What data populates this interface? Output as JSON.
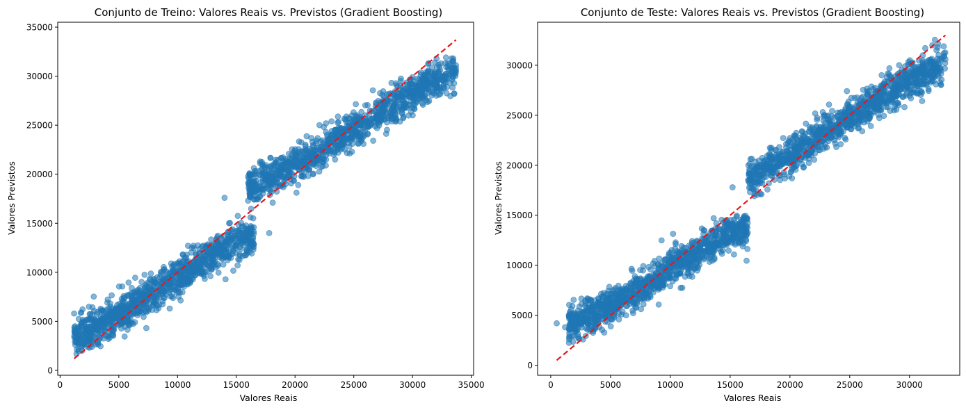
{
  "chart_data": [
    {
      "type": "scatter",
      "title": "Conjunto de Treino: Valores Reais vs. Previstos (Gradient Boosting)",
      "xlabel": "Valores Reais",
      "ylabel": "Valores Previstos",
      "xlim": [
        -200,
        35200
      ],
      "ylim": [
        -500,
        35500
      ],
      "xticks": [
        0,
        5000,
        10000,
        15000,
        20000,
        25000,
        30000,
        35000
      ],
      "xtick_labels": [
        "0",
        "5000",
        "10000",
        "15000",
        "20000",
        "25000",
        "30000",
        "35000"
      ],
      "yticks": [
        0,
        5000,
        10000,
        15000,
        20000,
        25000,
        30000,
        35000
      ],
      "ytick_labels": [
        "0",
        "5000",
        "10000",
        "15000",
        "20000",
        "25000",
        "30000",
        "35000"
      ],
      "grid": false,
      "point_color": "#1f77b4",
      "reference_line": {
        "x": [
          1200,
          33700
        ],
        "y": [
          1200,
          33700
        ],
        "color": "#e8161b",
        "style": "dashed"
      },
      "clusters": [
        {
          "x_range": [
            1200,
            16500
          ],
          "trend": [
            [
              1200,
              3600
            ],
            [
              5000,
              5600
            ],
            [
              10000,
              9500
            ],
            [
              15000,
              13200
            ],
            [
              16500,
              13800
            ]
          ],
          "spread": 2200
        },
        {
          "x_range": [
            16000,
            33700
          ],
          "trend": [
            [
              16500,
              18800
            ],
            [
              20000,
              20900
            ],
            [
              25000,
              24500
            ],
            [
              30000,
              28300
            ],
            [
              33700,
              30700
            ]
          ],
          "spread": 2300
        }
      ],
      "outliers": [
        {
          "x": 1200,
          "y": 5800
        },
        {
          "x": 14000,
          "y": 17600
        },
        {
          "x": 16300,
          "y": 17900
        },
        {
          "x": 16000,
          "y": 17300
        },
        {
          "x": 33700,
          "y": 30800
        },
        {
          "x": 17800,
          "y": 14000
        }
      ]
    },
    {
      "type": "scatter",
      "title": "Conjunto de Teste: Valores Reais vs. Previstos (Gradient Boosting)",
      "xlabel": "Valores Reais",
      "ylabel": "Valores Previstos",
      "xlim": [
        -1100,
        34200
      ],
      "ylim": [
        -1000,
        34300
      ],
      "xticks": [
        0,
        5000,
        10000,
        15000,
        20000,
        25000,
        30000
      ],
      "xtick_labels": [
        "0",
        "5000",
        "10000",
        "15000",
        "20000",
        "25000",
        "30000"
      ],
      "yticks": [
        0,
        5000,
        10000,
        15000,
        20000,
        25000,
        30000
      ],
      "ytick_labels": [
        "0",
        "5000",
        "10000",
        "15000",
        "20000",
        "25000",
        "30000"
      ],
      "grid": false,
      "point_color": "#1f77b4",
      "reference_line": {
        "x": [
          500,
          33000
        ],
        "y": [
          500,
          33000
        ],
        "color": "#e8161b",
        "style": "dashed"
      },
      "clusters": [
        {
          "x_range": [
            1500,
            16500
          ],
          "trend": [
            [
              1500,
              4000
            ],
            [
              5000,
              5900
            ],
            [
              10000,
              9700
            ],
            [
              15000,
              13300
            ],
            [
              16500,
              13600
            ]
          ],
          "spread": 2100
        },
        {
          "x_range": [
            16500,
            33000
          ],
          "trend": [
            [
              16500,
              18700
            ],
            [
              20000,
              21000
            ],
            [
              25000,
              24800
            ],
            [
              30000,
              28600
            ],
            [
              33000,
              30200
            ]
          ],
          "spread": 2200
        }
      ],
      "outliers": [
        {
          "x": 500,
          "y": 4200
        },
        {
          "x": 1200,
          "y": 3800
        },
        {
          "x": 15200,
          "y": 17800
        },
        {
          "x": 32500,
          "y": 30600
        },
        {
          "x": 33000,
          "y": 30600
        },
        {
          "x": 16500,
          "y": 18500
        }
      ]
    }
  ]
}
